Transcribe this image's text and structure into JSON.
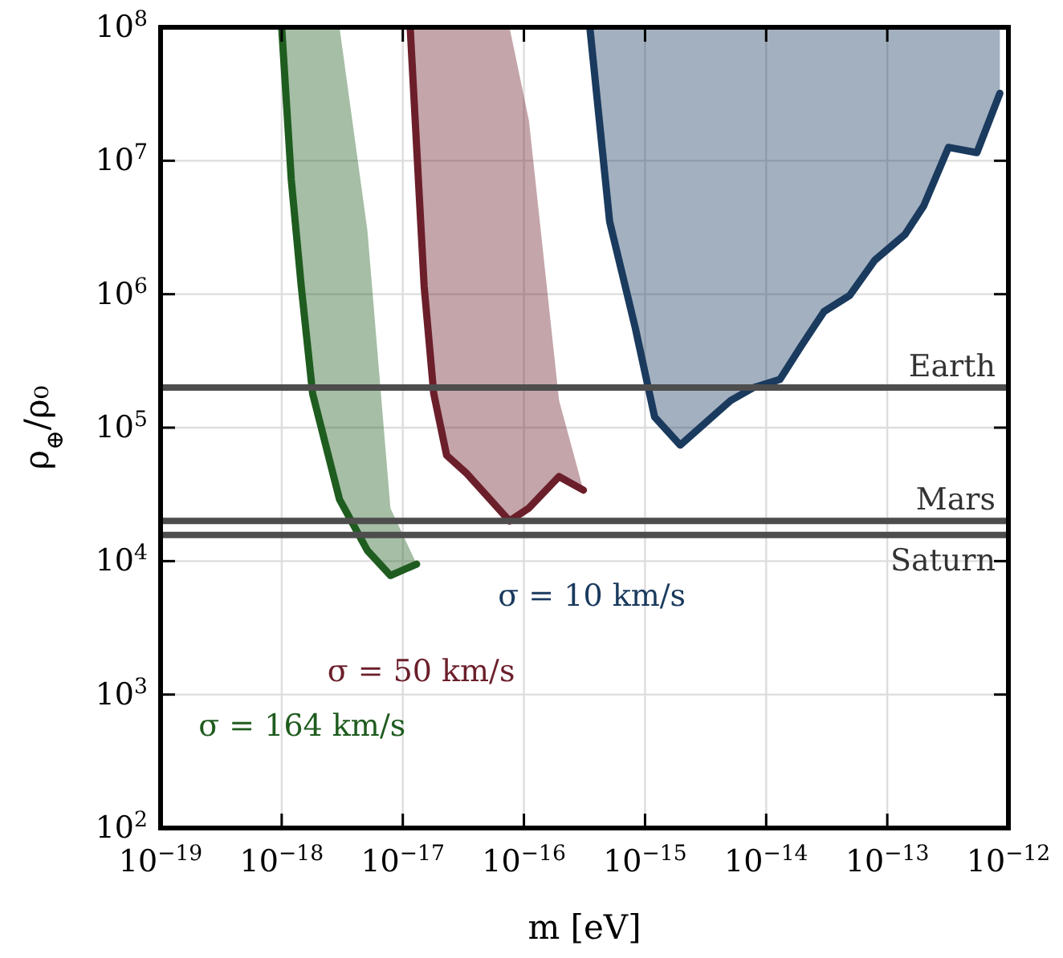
{
  "chart_data": {
    "type": "line",
    "xlabel": "m [eV]",
    "ylabel": "ρ$_{⊕}$/ρ₀",
    "log": "xy",
    "grid": true,
    "line_style": "solid",
    "marker": "none",
    "xlim": [
      1e-19,
      1e-12
    ],
    "ylim": [
      100,
      100000000
    ],
    "xticks": [
      {
        "value": 1e-19,
        "label": "10$^{−19}$"
      },
      {
        "value": 1e-18,
        "label": "10$^{−18}$"
      },
      {
        "value": 1e-17,
        "label": "10$^{−17}$"
      },
      {
        "value": 1e-16,
        "label": "10$^{−16}$"
      },
      {
        "value": 1e-15,
        "label": "10$^{−15}$"
      },
      {
        "value": 1e-14,
        "label": "10$^{−14}$"
      },
      {
        "value": 1e-13,
        "label": "10$^{−13}$"
      },
      {
        "value": 1e-12,
        "label": "10$^{−12}$"
      }
    ],
    "yticks": [
      {
        "value": 100,
        "label": "10$^{2}$"
      },
      {
        "value": 1000,
        "label": "10$^{3}$"
      },
      {
        "value": 10000,
        "label": "10$^{4}$"
      },
      {
        "value": 100000,
        "label": "10$^{5}$"
      },
      {
        "value": 1000000,
        "label": "10$^{6}$"
      },
      {
        "value": 10000000,
        "label": "10$^{7}$"
      },
      {
        "value": 100000000,
        "label": "10$^{8}$"
      }
    ],
    "series": [
      {
        "name": "σ = 164 km/s",
        "color": "#1f5c1f",
        "x": [
          1e-18,
          1.2e-18,
          1.45e-18,
          1.8e-18,
          3e-18,
          5.1e-18,
          7.9e-18,
          1.3e-17
        ],
        "values": [
          100000000,
          7200000,
          1150000,
          180000,
          29000,
          12000,
          7800,
          9500
        ],
        "lower": [
          100000000,
          7200000,
          1150000,
          180000,
          29000,
          12000,
          7800,
          9500
        ],
        "upper": [
          100000000,
          100000000,
          100000000,
          100000000,
          100000000,
          3000000,
          25000,
          9500
        ]
      },
      {
        "name": "σ = 50 km/s",
        "color": "#6b1f2a",
        "x": [
          1.15e-17,
          1.5e-17,
          1.8e-17,
          2.3e-17,
          3.4e-17,
          7.6e-17,
          1.1e-16,
          1.95e-16,
          3.1e-16
        ],
        "values": [
          100000000,
          1150000,
          180000,
          62000,
          45000,
          20000,
          25000,
          43000,
          34000
        ],
        "lower": [
          100000000,
          1150000,
          180000,
          62000,
          45000,
          20000,
          25000,
          43000,
          34000
        ],
        "upper": [
          100000000,
          100000000,
          100000000,
          100000000,
          100000000,
          100000000,
          20000000,
          160000,
          34000
        ]
      },
      {
        "name": "σ = 10 km/s",
        "color": "#1a3a5e",
        "x": [
          3.5e-16,
          5.1e-16,
          8.3e-16,
          1.2e-15,
          1.95e-15,
          3.2e-15,
          5.1e-15,
          7.9e-15,
          1.3e-14,
          1.95e-14,
          3e-14,
          4.9e-14,
          7.9e-14,
          1.4e-13,
          2e-13,
          3.2e-13,
          5.5e-13,
          8.5e-13
        ],
        "values": [
          100000000,
          3500000,
          560000,
          120000,
          74000,
          110000,
          160000,
          200000,
          230000,
          410000,
          740000,
          980000,
          1800000,
          2800000,
          4600000,
          12600000,
          11500000,
          32000000
        ],
        "lower": [
          100000000,
          3500000,
          560000,
          120000,
          74000,
          110000,
          160000,
          200000,
          230000,
          410000,
          740000,
          980000,
          1800000,
          2800000,
          4600000,
          12600000,
          11500000,
          32000000
        ],
        "upper": [
          100000000,
          100000000,
          100000000,
          100000000,
          100000000,
          100000000,
          100000000,
          100000000,
          100000000,
          100000000,
          100000000,
          100000000,
          100000000,
          100000000,
          100000000,
          100000000,
          100000000,
          100000000
        ]
      }
    ],
    "ref_lines": [
      {
        "axis": "y",
        "value": 200000,
        "label": "Earth",
        "color": "#4d4d4d"
      },
      {
        "axis": "y",
        "value": 20000,
        "label": "Mars",
        "color": "#4d4d4d"
      },
      {
        "axis": "y",
        "value": 15700,
        "label": "Saturn",
        "color": "#4d4d4d"
      }
    ]
  }
}
